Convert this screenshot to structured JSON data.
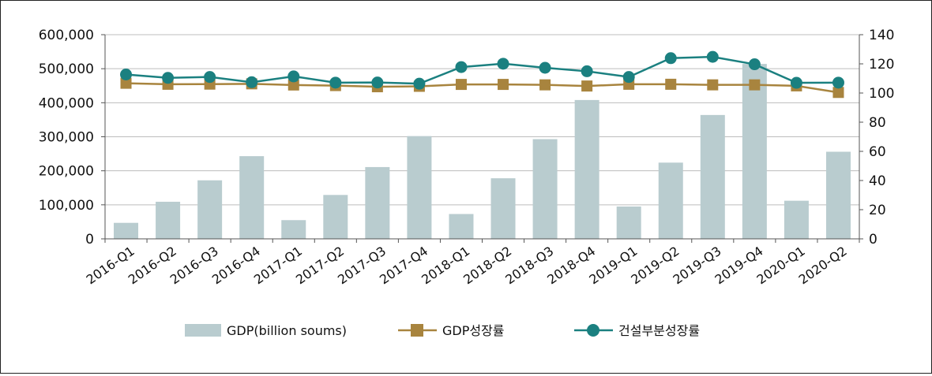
{
  "chart_data": {
    "type": "bar",
    "title": "",
    "categories": [
      "2016-Q1",
      "2016-Q2",
      "2016-Q3",
      "2016-Q4",
      "2017-Q1",
      "2017-Q2",
      "2017-Q3",
      "2017-Q4",
      "2018-Q1",
      "2018-Q2",
      "2018-Q3",
      "2018-Q4",
      "2019-Q1",
      "2019-Q2",
      "2019-Q3",
      "2019-Q4",
      "2020-Q1",
      "2020-Q2"
    ],
    "y_left": {
      "ylim": [
        0,
        600000
      ],
      "ticks": [
        "0",
        "100,000",
        "200,000",
        "300,000",
        "400,000",
        "500,000",
        "600,000"
      ],
      "tick_values": [
        0,
        100000,
        200000,
        300000,
        400000,
        500000,
        600000
      ]
    },
    "y_right": {
      "ylim": [
        0,
        140
      ],
      "ticks": [
        "0",
        "20",
        "40",
        "60",
        "80",
        "100",
        "120",
        "140"
      ],
      "tick_values": [
        0,
        20,
        40,
        60,
        80,
        100,
        120,
        140
      ]
    },
    "grid": "horizontal",
    "legend_position": "bottom",
    "series": [
      {
        "name": "GDP(billion soums)",
        "type": "bar",
        "axis": "left",
        "color": "#b9cccf",
        "values": [
          47000,
          109000,
          172000,
          243000,
          55000,
          129000,
          211000,
          302000,
          73000,
          178000,
          293000,
          408000,
          95000,
          224000,
          364000,
          514000,
          112000,
          256000
        ]
      },
      {
        "name": "GDP성장률",
        "type": "line",
        "axis": "right",
        "marker": "square",
        "color": "#a8843e",
        "values": [
          106.7,
          106.0,
          106.1,
          106.3,
          105.5,
          105.1,
          104.3,
          104.6,
          105.9,
          105.9,
          105.6,
          104.8,
          106.0,
          106.0,
          105.6,
          105.6,
          104.9,
          100.4
        ]
      },
      {
        "name": "건설부분성장률",
        "type": "line",
        "axis": "right",
        "marker": "circle",
        "color": "#1b8080",
        "values": [
          112.7,
          110.4,
          111.0,
          107.4,
          111.4,
          107.1,
          107.2,
          106.4,
          117.8,
          120.1,
          117.3,
          114.9,
          111.0,
          123.9,
          124.8,
          119.7,
          107.0,
          107.1
        ]
      }
    ]
  }
}
